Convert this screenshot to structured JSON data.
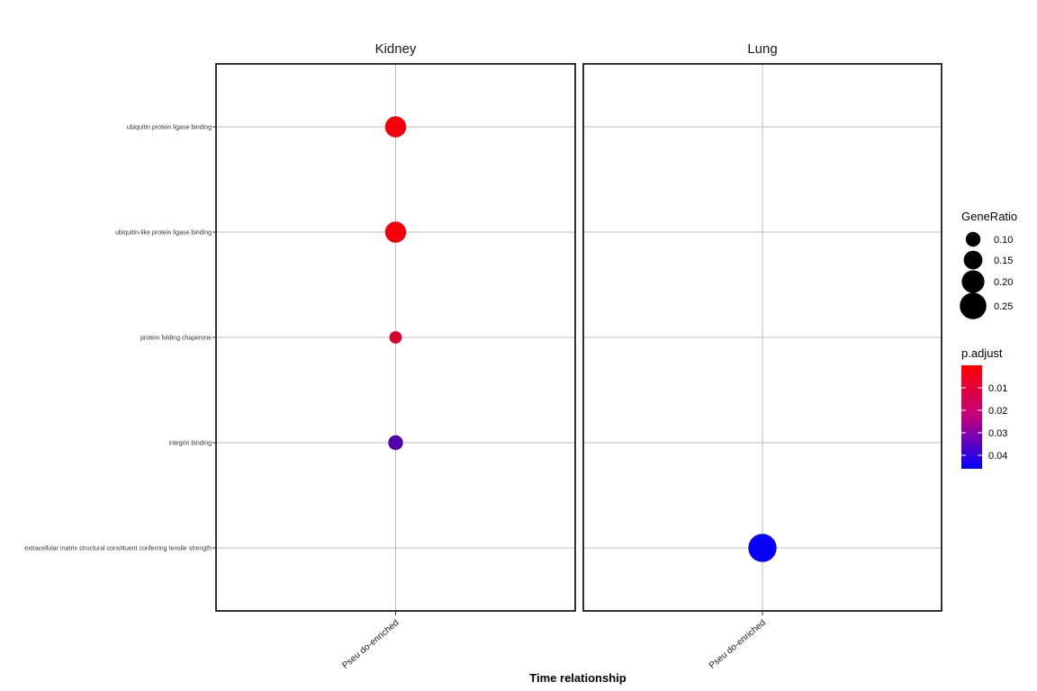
{
  "chart_data": {
    "type": "scatter",
    "xlabel": "Time relationship",
    "ylabel": "",
    "panels": [
      "Kidney",
      "Lung"
    ],
    "x_categories": [
      "Pseu do-enriched"
    ],
    "y_categories": [
      "ubiquitin protein ligase binding",
      "ubiquitin-like protein ligase binding",
      "protein folding chaperone",
      "integrin binding",
      "extracellular matrix structural constituent conferring tensile strength"
    ],
    "points": [
      {
        "panel": "Kidney",
        "x": "Pseu do-enriched",
        "y": "ubiquitin protein ligase binding",
        "gene_ratio": 0.18,
        "p_adjust": 0.002
      },
      {
        "panel": "Kidney",
        "x": "Pseu do-enriched",
        "y": "ubiquitin-like protein ligase binding",
        "gene_ratio": 0.18,
        "p_adjust": 0.002
      },
      {
        "panel": "Kidney",
        "x": "Pseu do-enriched",
        "y": "protein folding chaperone",
        "gene_ratio": 0.07,
        "p_adjust": 0.008
      },
      {
        "panel": "Kidney",
        "x": "Pseu do-enriched",
        "y": "integrin binding",
        "gene_ratio": 0.1,
        "p_adjust": 0.031
      },
      {
        "panel": "Lung",
        "x": "Pseu do-enriched",
        "y": "extracellular matrix structural constituent conferring tensile strength",
        "gene_ratio": 0.27,
        "p_adjust": 0.045
      }
    ],
    "size_legend": {
      "title": "GeneRatio",
      "breaks": [
        0.1,
        0.15,
        0.2,
        0.25
      ],
      "labels": [
        "0.10",
        "0.15",
        "0.20",
        "0.25"
      ]
    },
    "color_legend": {
      "title": "p.adjust",
      "breaks": [
        0.01,
        0.02,
        0.03,
        0.04
      ],
      "labels": [
        "0.01",
        "0.02",
        "0.03",
        "0.04"
      ],
      "range": [
        0.0,
        0.046
      ],
      "low_color": "#FF0000",
      "high_color": "#0000FF"
    },
    "grid": true
  }
}
